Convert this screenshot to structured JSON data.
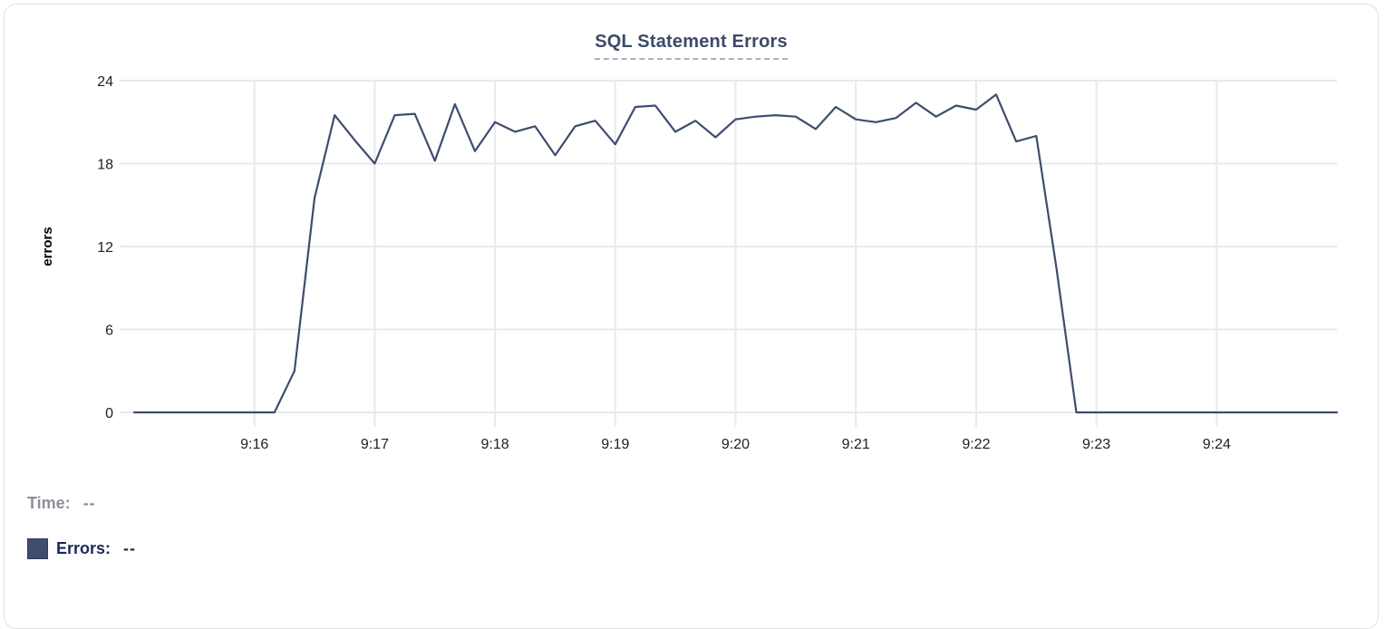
{
  "card": {
    "title": "SQL Statement Errors"
  },
  "legend": {
    "time_label": "Time:",
    "time_value": "--",
    "errors_label": "Errors:",
    "errors_value": "--",
    "swatch_color": "#3f4e6e"
  },
  "colors": {
    "line": "#3e4d6e",
    "grid": "#e9e9e9",
    "tick_text": "#212121",
    "axis_label": "#000000",
    "title": "#3b4a68"
  },
  "chart_data": {
    "type": "line",
    "title": "SQL Statement Errors",
    "xlabel": "",
    "ylabel": "errors",
    "x_range": [
      "9:15:00",
      "9:25:00"
    ],
    "x_ticks": [
      "9:16",
      "9:17",
      "9:18",
      "9:19",
      "9:20",
      "9:21",
      "9:22",
      "9:23",
      "9:24"
    ],
    "ylim": [
      0,
      24
    ],
    "y_ticks": [
      0,
      6,
      12,
      18,
      24
    ],
    "grid": true,
    "legend_position": "bottom-left",
    "series": [
      {
        "name": "Errors",
        "color": "#3e4d6e",
        "points": [
          [
            "9:15:00",
            0
          ],
          [
            "9:15:10",
            0
          ],
          [
            "9:15:20",
            0
          ],
          [
            "9:15:30",
            0
          ],
          [
            "9:15:40",
            0
          ],
          [
            "9:15:50",
            0
          ],
          [
            "9:16:00",
            0
          ],
          [
            "9:16:10",
            0
          ],
          [
            "9:16:20",
            3
          ],
          [
            "9:16:30",
            15.5
          ],
          [
            "9:16:40",
            21.5
          ],
          [
            "9:16:50",
            19.7
          ],
          [
            "9:17:00",
            18
          ],
          [
            "9:17:10",
            21.5
          ],
          [
            "9:17:20",
            21.6
          ],
          [
            "9:17:30",
            18.2
          ],
          [
            "9:17:40",
            22.3
          ],
          [
            "9:17:50",
            18.9
          ],
          [
            "9:18:00",
            21
          ],
          [
            "9:18:10",
            20.3
          ],
          [
            "9:18:20",
            20.7
          ],
          [
            "9:18:30",
            18.6
          ],
          [
            "9:18:40",
            20.7
          ],
          [
            "9:18:50",
            21.1
          ],
          [
            "9:19:00",
            19.4
          ],
          [
            "9:19:10",
            22.1
          ],
          [
            "9:19:20",
            22.2
          ],
          [
            "9:19:30",
            20.3
          ],
          [
            "9:19:40",
            21.1
          ],
          [
            "9:19:50",
            19.9
          ],
          [
            "9:20:00",
            21.2
          ],
          [
            "9:20:10",
            21.4
          ],
          [
            "9:20:20",
            21.5
          ],
          [
            "9:20:30",
            21.4
          ],
          [
            "9:20:40",
            20.5
          ],
          [
            "9:20:50",
            22.1
          ],
          [
            "9:21:00",
            21.2
          ],
          [
            "9:21:10",
            21.0
          ],
          [
            "9:21:20",
            21.3
          ],
          [
            "9:21:30",
            22.4
          ],
          [
            "9:21:40",
            21.4
          ],
          [
            "9:21:50",
            22.2
          ],
          [
            "9:22:00",
            21.9
          ],
          [
            "9:22:10",
            23.0
          ],
          [
            "9:22:20",
            19.6
          ],
          [
            "9:22:30",
            20.0
          ],
          [
            "9:22:40",
            10.5
          ],
          [
            "9:22:50",
            0
          ],
          [
            "9:23:00",
            0
          ],
          [
            "9:23:10",
            0
          ],
          [
            "9:23:20",
            0
          ],
          [
            "9:23:30",
            0
          ],
          [
            "9:23:40",
            0
          ],
          [
            "9:23:50",
            0
          ],
          [
            "9:24:00",
            0
          ],
          [
            "9:24:10",
            0
          ],
          [
            "9:24:20",
            0
          ],
          [
            "9:24:30",
            0
          ],
          [
            "9:24:40",
            0
          ],
          [
            "9:24:50",
            0
          ],
          [
            "9:25:00",
            0
          ]
        ]
      }
    ]
  }
}
